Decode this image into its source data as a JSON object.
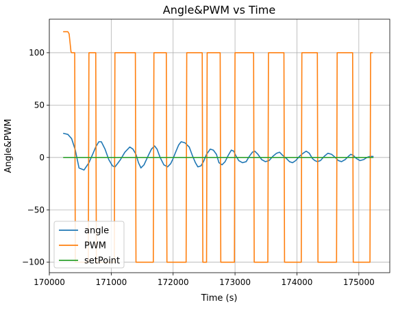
{
  "chart_data": {
    "type": "line",
    "title": "Angle&PWM vs Time",
    "xlabel": "Time (s)",
    "ylabel": "Angle&PWM",
    "xlim": [
      170000,
      175500
    ],
    "ylim": [
      -110,
      132
    ],
    "xticks": [
      170000,
      171000,
      172000,
      173000,
      174000,
      175000
    ],
    "yticks": [
      -100,
      -50,
      0,
      50,
      100
    ],
    "xtick_labels": [
      "170000",
      "171000",
      "172000",
      "173000",
      "174000",
      "175000"
    ],
    "ytick_labels": [
      "−100",
      "−50",
      "0",
      "50",
      "100"
    ],
    "grid": true,
    "legend": {
      "position": "lower-left",
      "entries": [
        "angle",
        "PWM",
        "setPoint"
      ]
    },
    "series": [
      {
        "name": "angle",
        "color": "#1f77b4",
        "x": [
          170230,
          170300,
          170360,
          170420,
          170480,
          170560,
          170640,
          170700,
          170750,
          170800,
          170840,
          170900,
          170960,
          171020,
          171060,
          171100,
          171150,
          171220,
          171300,
          171350,
          171400,
          171440,
          171480,
          171530,
          171600,
          171650,
          171700,
          171740,
          171790,
          171850,
          171910,
          171960,
          172000,
          172040,
          172090,
          172130,
          172190,
          172260,
          172310,
          172360,
          172400,
          172450,
          172490,
          172540,
          172600,
          172650,
          172700,
          172740,
          172790,
          172840,
          172890,
          172940,
          172980,
          173010,
          173060,
          173120,
          173180,
          173230,
          173280,
          173320,
          173370,
          173430,
          173490,
          173550,
          173610,
          173670,
          173720,
          173770,
          173830,
          173880,
          173930,
          173980,
          174040,
          174100,
          174150,
          174200,
          174250,
          174290,
          174330,
          174380,
          174440,
          174500,
          174560,
          174620,
          174670,
          174720,
          174780,
          174830,
          174870,
          174910,
          174960,
          175020,
          175080,
          175130,
          175180,
          175230
        ],
        "y": [
          23,
          22,
          18,
          7,
          -10,
          -12,
          -5,
          3,
          10,
          15,
          15,
          8,
          -2,
          -8,
          -9,
          -6,
          -2,
          5,
          10,
          8,
          3,
          -5,
          -10,
          -7,
          2,
          8,
          11,
          8,
          0,
          -7,
          -9,
          -6,
          -1,
          5,
          12,
          15,
          14,
          10,
          2,
          -5,
          -9,
          -8,
          -4,
          3,
          8,
          7,
          3,
          -5,
          -7,
          -4,
          2,
          7,
          6,
          2,
          -3,
          -5,
          -4,
          1,
          5,
          6,
          3,
          -2,
          -4,
          -3,
          1,
          4,
          5,
          2,
          -1,
          -4,
          -5,
          -3,
          1,
          4,
          6,
          4,
          -1,
          -3,
          -4,
          -3,
          1,
          4,
          3,
          0,
          -3,
          -4,
          -2,
          1,
          3,
          2,
          -1,
          -3,
          -2,
          0,
          1,
          1
        ]
      },
      {
        "name": "PWM",
        "color": "#ff7f0e",
        "x": [
          170230,
          170300,
          170320,
          170350,
          170360,
          170410,
          170420,
          170630,
          170640,
          170750,
          170760,
          170770,
          171050,
          171060,
          171390,
          171400,
          171630,
          171640,
          171680,
          171690,
          171890,
          171900,
          171950,
          171960,
          172210,
          172220,
          172250,
          172260,
          172470,
          172480,
          172540,
          172550,
          172760,
          172770,
          172780,
          172790,
          172990,
          173000,
          173070,
          173080,
          173300,
          173310,
          173330,
          173340,
          173530,
          173540,
          173580,
          173590,
          173790,
          173800,
          173850,
          173860,
          174070,
          174080,
          174130,
          174140,
          174330,
          174340,
          174430,
          174440,
          174640,
          174650,
          174700,
          174710,
          174900,
          174910,
          174970,
          174980,
          175180,
          175190,
          175220
        ],
        "y": [
          120,
          120,
          118,
          101,
          100,
          100,
          -100,
          -100,
          100,
          100,
          -100,
          -100,
          -100,
          100,
          100,
          -100,
          -100,
          -100,
          -100,
          100,
          100,
          -100,
          -100,
          -100,
          -100,
          100,
          100,
          100,
          100,
          -100,
          -100,
          100,
          100,
          -100,
          -100,
          -100,
          -100,
          100,
          100,
          100,
          100,
          -100,
          -100,
          -100,
          -100,
          100,
          100,
          100,
          100,
          -100,
          -100,
          -100,
          -100,
          100,
          100,
          100,
          100,
          -100,
          -100,
          -100,
          -100,
          100,
          100,
          100,
          100,
          -100,
          -100,
          -100,
          -100,
          100,
          100
        ]
      },
      {
        "name": "setPoint",
        "color": "#2ca02c",
        "x": [
          170230,
          175230
        ],
        "y": [
          0,
          0
        ]
      }
    ]
  }
}
